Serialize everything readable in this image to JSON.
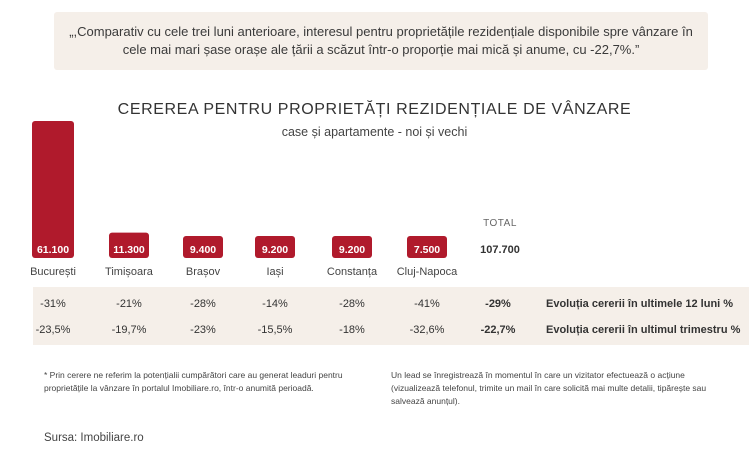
{
  "quote": "„,Comparativ cu cele trei luni anterioare, interesul pentru proprietățile rezidențiale disponibile spre vânzare în cele mai mari șase orașe ale țării a scăzut într-o proporție mai mică și anume, cu -22,7%.”",
  "colors": {
    "bar": "#b01a2c",
    "panel": "#f5efe9"
  },
  "chart_data": {
    "type": "bar",
    "title": "CEREREA PENTRU PROPRIETĂȚI REZIDENȚIALE DE VÂNZARE",
    "subtitle": "case și apartamente - noi și vechi",
    "categories": [
      "București",
      "Timișoara",
      "Brașov",
      "Iași",
      "Constanța",
      "Cluj-Napoca"
    ],
    "values": [
      61100,
      11300,
      9400,
      9200,
      9200,
      7500
    ],
    "value_labels": [
      "61.100",
      "11.300",
      "9.400",
      "9.200",
      "9.200",
      "7.500"
    ],
    "total_label": "TOTAL",
    "total_value": "107.700"
  },
  "table": {
    "rows": [
      {
        "values": [
          "-31%",
          "-21%",
          "-28%",
          "-14%",
          "-28%",
          "-41%"
        ],
        "total": "-29%",
        "label": "Evoluția cererii în ultimele 12 luni %"
      },
      {
        "values": [
          "-23,5%",
          "-19,7%",
          "-23%",
          "-15,5%",
          "-18%",
          "-32,6%"
        ],
        "total": "-22,7%",
        "label": "Evoluția cererii în ultimul trimestru %"
      }
    ]
  },
  "notes": {
    "left": "* Prin cerere ne referim la potențialii cumpărători care au generat leaduri pentru proprietățile la vânzare în portalul Imobiliare.ro, într-o anumită perioadă.",
    "right": "Un lead se înregistrează în momentul în care un vizitator efectuează o acțiune (vizualizează telefonul, trimite un mail în care solicită mai multe detalii, tipărește sau salvează anunțul)."
  },
  "source": "Sursa: Imobiliare.ro"
}
